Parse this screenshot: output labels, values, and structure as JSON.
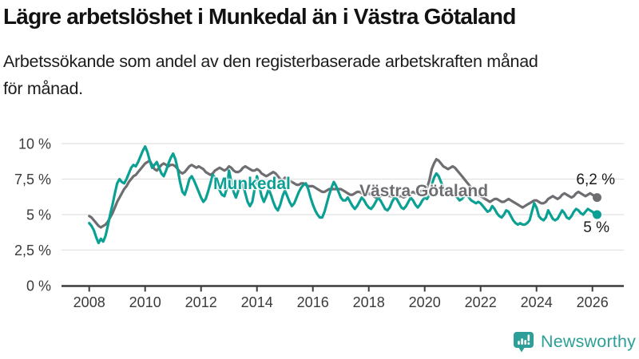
{
  "page": {
    "title": "Lägre arbetslöshet i Munkedal än i Västra Götaland",
    "subtitle": "Arbetssökande som andel av den registerbaserade arbetskraften månad för månad.",
    "subtitle_line1": "Arbetssökande som andel av den registerbaserade arbetskraften månad",
    "subtitle_line2": "för månad."
  },
  "colors": {
    "munkedal": "#0aa093",
    "vastra_gotaland": "#6e6e72",
    "gridline": "#e1e1e1",
    "axis_line": "#3c3c3c",
    "axis_text": "#3b3b3b",
    "title_text": "#121212",
    "end_label_text": "#1a1a1a",
    "logo_teal": "#2d9f98"
  },
  "chart_data": {
    "type": "line",
    "title": "Lägre arbetslöshet i Munkedal än i Västra Götaland",
    "subtitle": "Arbetssökande som andel av den registerbaserade arbetskraften månad för månad.",
    "unit": "%",
    "x_start": "2008-01",
    "x_interval": "monthly",
    "x_end": "2026-03",
    "xlabel": "",
    "ylabel": "",
    "ylim": [
      0,
      10.3
    ],
    "grid": "horizontal",
    "legend": "inline-labels",
    "x_ticks": [
      2008,
      2010,
      2012,
      2014,
      2016,
      2018,
      2020,
      2022,
      2024,
      2026
    ],
    "y_ticks": [
      {
        "value": 0,
        "label": "0 %"
      },
      {
        "value": 2.5,
        "label": "2,5 %"
      },
      {
        "value": 5,
        "label": "5 %"
      },
      {
        "value": 7.5,
        "label": "7,5 %"
      },
      {
        "value": 10,
        "label": "10 %"
      }
    ],
    "series": [
      {
        "name": "Munkedal",
        "color": "#0aa093",
        "end_label": "5 %",
        "final_value": 5.0,
        "values": [
          4.4,
          4.2,
          3.9,
          3.4,
          3.0,
          3.3,
          3.1,
          3.5,
          4.2,
          5.0,
          5.7,
          6.5,
          7.2,
          7.5,
          7.3,
          7.2,
          7.5,
          7.9,
          8.3,
          8.5,
          8.4,
          8.7,
          9.1,
          9.5,
          9.8,
          9.4,
          8.8,
          8.3,
          8.5,
          8.7,
          8.3,
          7.9,
          7.7,
          8.1,
          8.6,
          9.0,
          9.3,
          8.9,
          8.2,
          7.3,
          6.6,
          6.4,
          6.9,
          7.5,
          7.7,
          7.4,
          7.0,
          6.6,
          6.2,
          5.9,
          6.1,
          6.6,
          7.2,
          7.8,
          7.6,
          7.1,
          6.7,
          6.4,
          6.3,
          6.8,
          8.1,
          7.3,
          6.6,
          6.2,
          6.7,
          7.3,
          7.1,
          6.5,
          5.9,
          5.6,
          5.9,
          6.8,
          7.7,
          7.0,
          6.3,
          5.9,
          6.3,
          6.8,
          6.4,
          5.9,
          5.5,
          5.3,
          5.7,
          6.3,
          6.7,
          6.3,
          5.9,
          5.6,
          5.8,
          6.2,
          6.6,
          6.9,
          7.1,
          7.2,
          6.8,
          6.2,
          5.7,
          5.3,
          5.0,
          4.8,
          4.8,
          5.2,
          5.8,
          6.4,
          6.9,
          7.3,
          7.0,
          6.6,
          6.2,
          6.0,
          6.0,
          6.2,
          5.9,
          5.6,
          5.4,
          5.6,
          5.9,
          6.2,
          6.0,
          5.7,
          5.5,
          5.4,
          5.6,
          5.9,
          6.2,
          6.0,
          5.7,
          5.4,
          5.3,
          5.5,
          5.9,
          6.2,
          6.1,
          5.8,
          5.5,
          5.4,
          5.6,
          5.9,
          6.2,
          6.0,
          5.7,
          5.5,
          5.7,
          6.0,
          6.2,
          6.1,
          6.4,
          7.1,
          7.6,
          7.9,
          7.7,
          7.3,
          6.9,
          6.6,
          6.4,
          6.5,
          6.6,
          6.4,
          6.2,
          6.0,
          6.1,
          6.3,
          6.4,
          6.2,
          6.0,
          5.9,
          5.8,
          5.9,
          5.8,
          5.6,
          5.4,
          5.2,
          5.3,
          5.6,
          5.4,
          5.1,
          4.9,
          4.8,
          5.0,
          5.3,
          5.2,
          4.9,
          4.6,
          4.4,
          4.3,
          4.4,
          4.3,
          4.3,
          4.4,
          4.6,
          5.2,
          5.8,
          5.5,
          4.9,
          4.7,
          4.6,
          4.8,
          5.3,
          5.0,
          4.7,
          4.6,
          4.7,
          5.0,
          5.3,
          5.1,
          4.8,
          4.7,
          4.9,
          5.2,
          5.4,
          5.3,
          5.1,
          5.0,
          5.2,
          5.4,
          5.3,
          5.2,
          5.0,
          5.0
        ]
      },
      {
        "name": "Västra Götaland",
        "color": "#6e6e72",
        "end_label": "6,2 %",
        "final_value": 6.2,
        "values": [
          4.9,
          4.8,
          4.6,
          4.4,
          4.2,
          4.1,
          4.2,
          4.3,
          4.5,
          4.8,
          5.1,
          5.5,
          5.9,
          6.2,
          6.5,
          6.8,
          7.0,
          7.3,
          7.5,
          7.7,
          7.8,
          8.0,
          8.2,
          8.4,
          8.6,
          8.7,
          8.8,
          8.5,
          8.2,
          8.1,
          8.3,
          8.5,
          8.6,
          8.5,
          8.4,
          8.5,
          8.5,
          8.4,
          8.2,
          8.0,
          7.9,
          8.0,
          8.2,
          8.4,
          8.5,
          8.4,
          8.3,
          8.4,
          8.3,
          8.2,
          8.0,
          7.9,
          7.8,
          7.9,
          8.1,
          8.2,
          8.3,
          8.2,
          8.1,
          8.2,
          8.4,
          8.3,
          8.1,
          8.0,
          8.0,
          8.1,
          8.3,
          8.4,
          8.3,
          8.2,
          8.1,
          8.1,
          8.2,
          8.1,
          7.9,
          7.8,
          7.7,
          7.8,
          7.9,
          8.0,
          7.9,
          7.7,
          7.5,
          7.4,
          7.6,
          7.5,
          7.4,
          7.3,
          7.2,
          7.1,
          7.1,
          7.2,
          7.2,
          7.1,
          7.0,
          7.0,
          7.0,
          6.9,
          6.8,
          6.7,
          6.6,
          6.6,
          6.7,
          6.8,
          6.8,
          6.8,
          6.8,
          6.8,
          6.8,
          6.7,
          6.6,
          6.5,
          6.4,
          6.4,
          6.5,
          6.6,
          6.6,
          6.5,
          6.4,
          6.4,
          6.5,
          6.4,
          6.3,
          6.2,
          6.2,
          6.3,
          6.4,
          6.5,
          6.4,
          6.3,
          6.3,
          6.3,
          6.4,
          6.3,
          6.3,
          6.2,
          6.3,
          6.4,
          6.5,
          6.6,
          6.5,
          6.5,
          6.6,
          6.7,
          6.8,
          6.9,
          7.4,
          8.2,
          8.6,
          8.9,
          8.8,
          8.6,
          8.4,
          8.3,
          8.2,
          8.3,
          8.4,
          8.3,
          8.1,
          7.9,
          7.7,
          7.5,
          7.3,
          7.1,
          6.9,
          6.7,
          6.5,
          6.4,
          6.3,
          6.2,
          6.1,
          6.0,
          5.9,
          6.0,
          6.1,
          6.1,
          6.0,
          5.9,
          5.9,
          6.0,
          6.1,
          6.0,
          5.9,
          5.8,
          5.7,
          5.6,
          5.5,
          5.6,
          5.7,
          5.8,
          5.9,
          6.0,
          6.0,
          5.9,
          5.8,
          5.8,
          5.9,
          6.1,
          6.2,
          6.3,
          6.2,
          6.1,
          6.2,
          6.4,
          6.5,
          6.4,
          6.3,
          6.2,
          6.3,
          6.5,
          6.6,
          6.5,
          6.4,
          6.3,
          6.4,
          6.5,
          6.4,
          6.3,
          6.2
        ]
      }
    ]
  },
  "footer": {
    "brand": "Newsworthy"
  }
}
